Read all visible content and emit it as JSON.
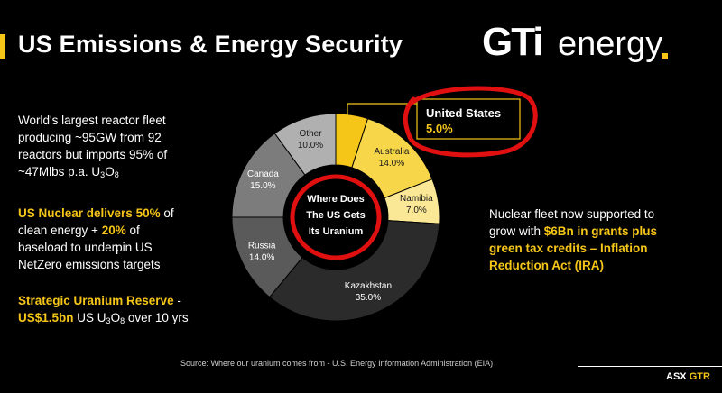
{
  "title": "US Emissions & Energy Security",
  "logo": {
    "gti": "GTi",
    "energy": "energy",
    "accent": "#f5c518"
  },
  "left_text": {
    "block1": {
      "line1": "World's largest reactor fleet",
      "line2": "producing ~95GW from 92",
      "line3": "reactors but imports 95% of",
      "line4_pre": "~47Mlbs p.a. U",
      "sub3": "3",
      "o": "O",
      "sub8": "8"
    },
    "block2": {
      "a": "US Nuclear delivers 50%",
      "b": " of",
      "c": "clean energy + ",
      "d": "20%",
      "e": " of",
      "f": "baseload to underpin US",
      "g": "NetZero emissions targets"
    },
    "block3": {
      "a": "Strategic Uranium Reserve",
      "b": " -",
      "c": "US$1.5bn",
      "d": " US U",
      "sub3": "3",
      "o": "O",
      "sub8": "8",
      "e": " over 10 yrs"
    }
  },
  "right_text": {
    "a": "Nuclear fleet now supported to",
    "b": "grow with ",
    "c": "$6Bn in grants plus",
    "d": "green tax credits – Inflation",
    "e": "Reduction Act (IRA)"
  },
  "chart_data": {
    "type": "pie",
    "center_label": [
      "Where Does",
      "The US Gets",
      "Its Uranium"
    ],
    "slices": [
      {
        "name": "United States",
        "value": 5.0,
        "label": "5.0%",
        "color": "#f5c518"
      },
      {
        "name": "Australia",
        "value": 14.0,
        "label": "14.0%",
        "color": "#f7d64a"
      },
      {
        "name": "Namibia",
        "value": 7.0,
        "label": "7.0%",
        "color": "#fbe896"
      },
      {
        "name": "Kazakhstan",
        "value": 35.0,
        "label": "35.0%",
        "color": "#2b2b2b"
      },
      {
        "name": "Russia",
        "value": 14.0,
        "label": "14.0%",
        "color": "#5a5a5a"
      },
      {
        "name": "Canada",
        "value": 15.0,
        "label": "15.0%",
        "color": "#7c7c7c"
      },
      {
        "name": "Other",
        "value": 10.0,
        "label": "10.0%",
        "color": "#b0b0b0"
      }
    ],
    "callout": {
      "name": "United States",
      "value": "5.0%"
    }
  },
  "source": "Source: Where our uranium comes from - U.S. Energy Information Administration (EIA)",
  "footer": {
    "asx": "ASX",
    "ticker": "GTR"
  }
}
